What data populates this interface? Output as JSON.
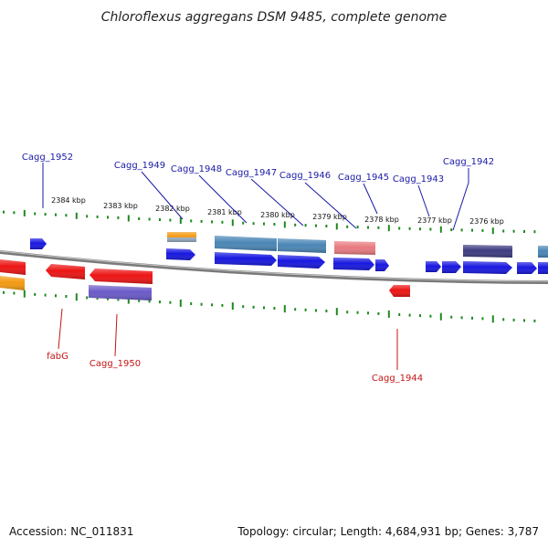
{
  "title": "Chloroflexus aggregans DSM 9485, complete genome",
  "footer": {
    "accession": "Accession: NC_011831",
    "summary": "Topology: circular; Length: 4,684,931 bp; Genes: 3,787"
  },
  "colors": {
    "forward": "#1818e0",
    "reverse": "#ec1414",
    "orange": "#f39a12",
    "steel": "#4a86b6",
    "pink": "#e87a80",
    "purple": "#6a5ac8",
    "navy": "#3e3c80",
    "tick": "#1e8a1e",
    "backbone": "#7a7a7a",
    "label_forward": "#1a1aa6",
    "label_reverse": "#c41414"
  },
  "kbp_labels": [
    "2384 kbp",
    "2383 kbp",
    "2382 kbp",
    "2381 kbp",
    "2380 kbp",
    "2379 kbp",
    "2378 kbp",
    "2377 kbp",
    "2376 kbp"
  ],
  "upper_genes": [
    "Cagg_1952",
    "Cagg_1949",
    "Cagg_1948",
    "Cagg_1947",
    "Cagg_1946",
    "Cagg_1945",
    "Cagg_1943",
    "Cagg_1942"
  ],
  "lower_genes": [
    "fabG",
    "Cagg_1950",
    "Cagg_1944"
  ]
}
